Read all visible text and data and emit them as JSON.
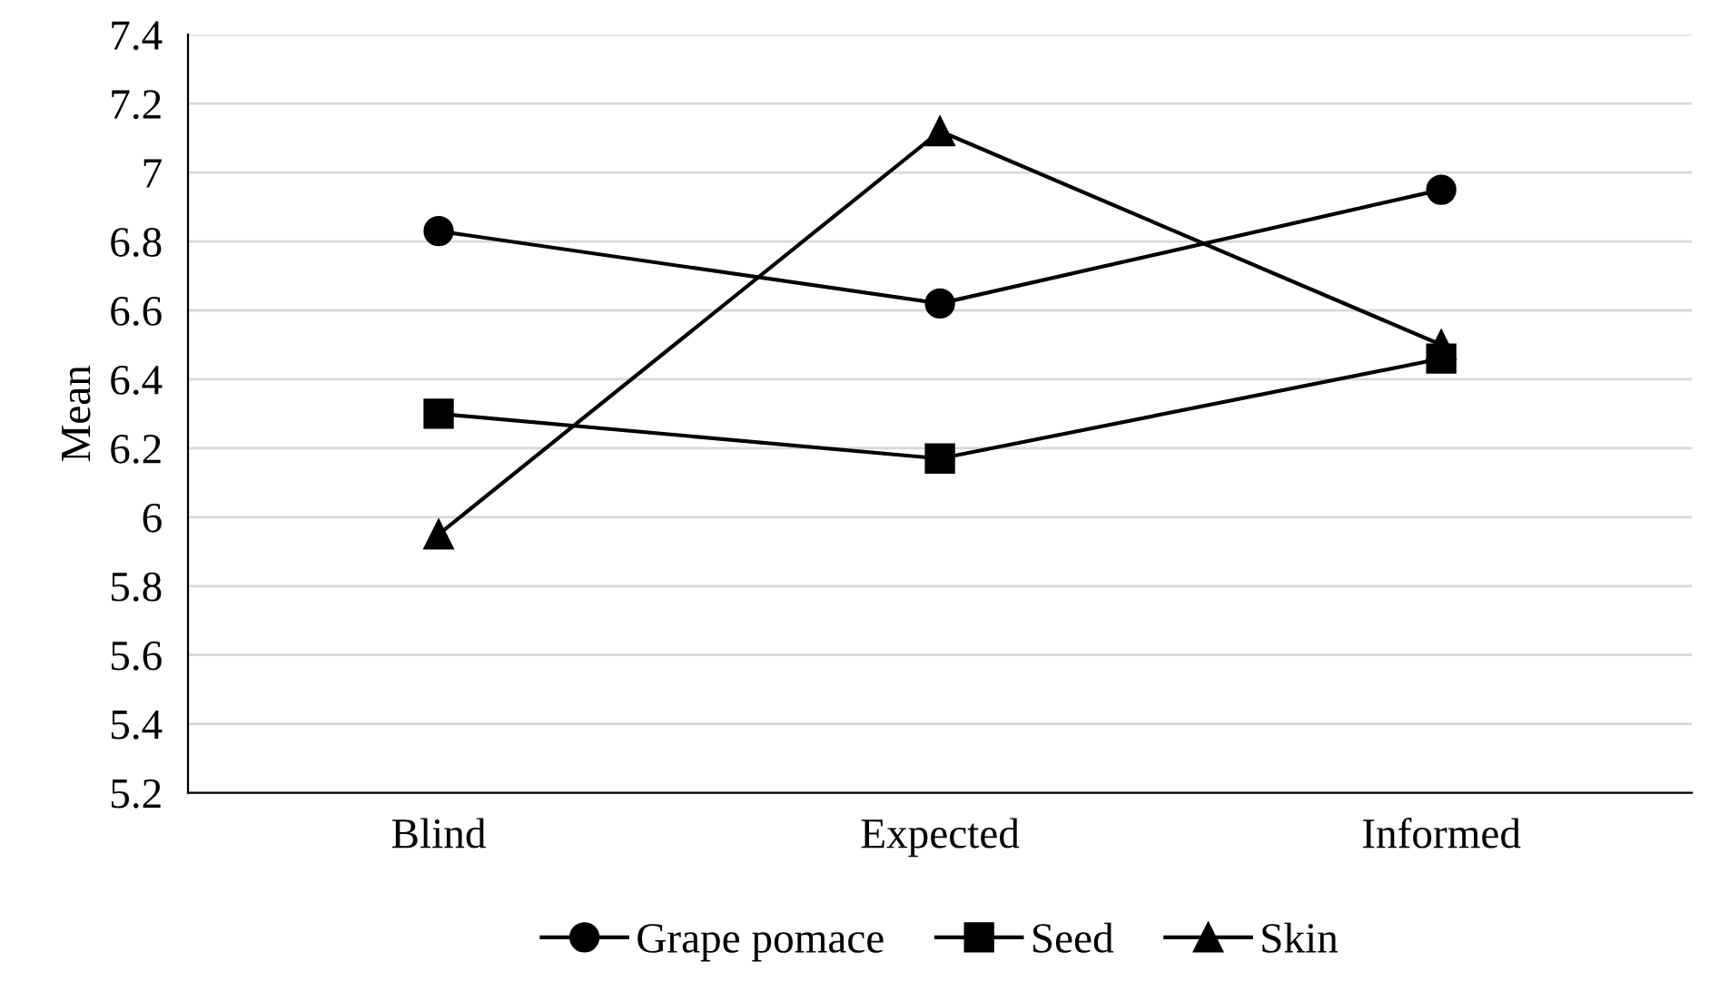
{
  "chart_data": {
    "type": "line",
    "ylabel": "Mean",
    "categories": [
      "Blind",
      "Expected",
      "Informed"
    ],
    "series": [
      {
        "name": "Grape pomace",
        "color": "#000000",
        "marker": "circle",
        "values": [
          6.83,
          6.62,
          6.95
        ]
      },
      {
        "name": "Seed",
        "color": "#000000",
        "marker": "square",
        "values": [
          6.3,
          6.17,
          6.46
        ]
      },
      {
        "name": "Skin",
        "color": "#000000",
        "marker": "triangle",
        "values": [
          5.95,
          7.12,
          6.5
        ]
      }
    ],
    "ylim": [
      5.2,
      7.4
    ],
    "yticks": [
      {
        "value": 5.2,
        "label": "5.2"
      },
      {
        "value": 5.4,
        "label": "5.4"
      },
      {
        "value": 5.6,
        "label": "5.6"
      },
      {
        "value": 5.8,
        "label": "5.8"
      },
      {
        "value": 6,
        "label": "6"
      },
      {
        "value": 6.2,
        "label": "6.2"
      },
      {
        "value": 6.4,
        "label": "6.4"
      },
      {
        "value": 6.6,
        "label": "6.6"
      },
      {
        "value": 6.8,
        "label": "6.8"
      },
      {
        "value": 7,
        "label": "7"
      },
      {
        "value": 7.2,
        "label": "7.2"
      },
      {
        "value": 7.4,
        "label": "7.4"
      }
    ],
    "grid": "y",
    "legend": "bottom",
    "line_style": "solid"
  }
}
